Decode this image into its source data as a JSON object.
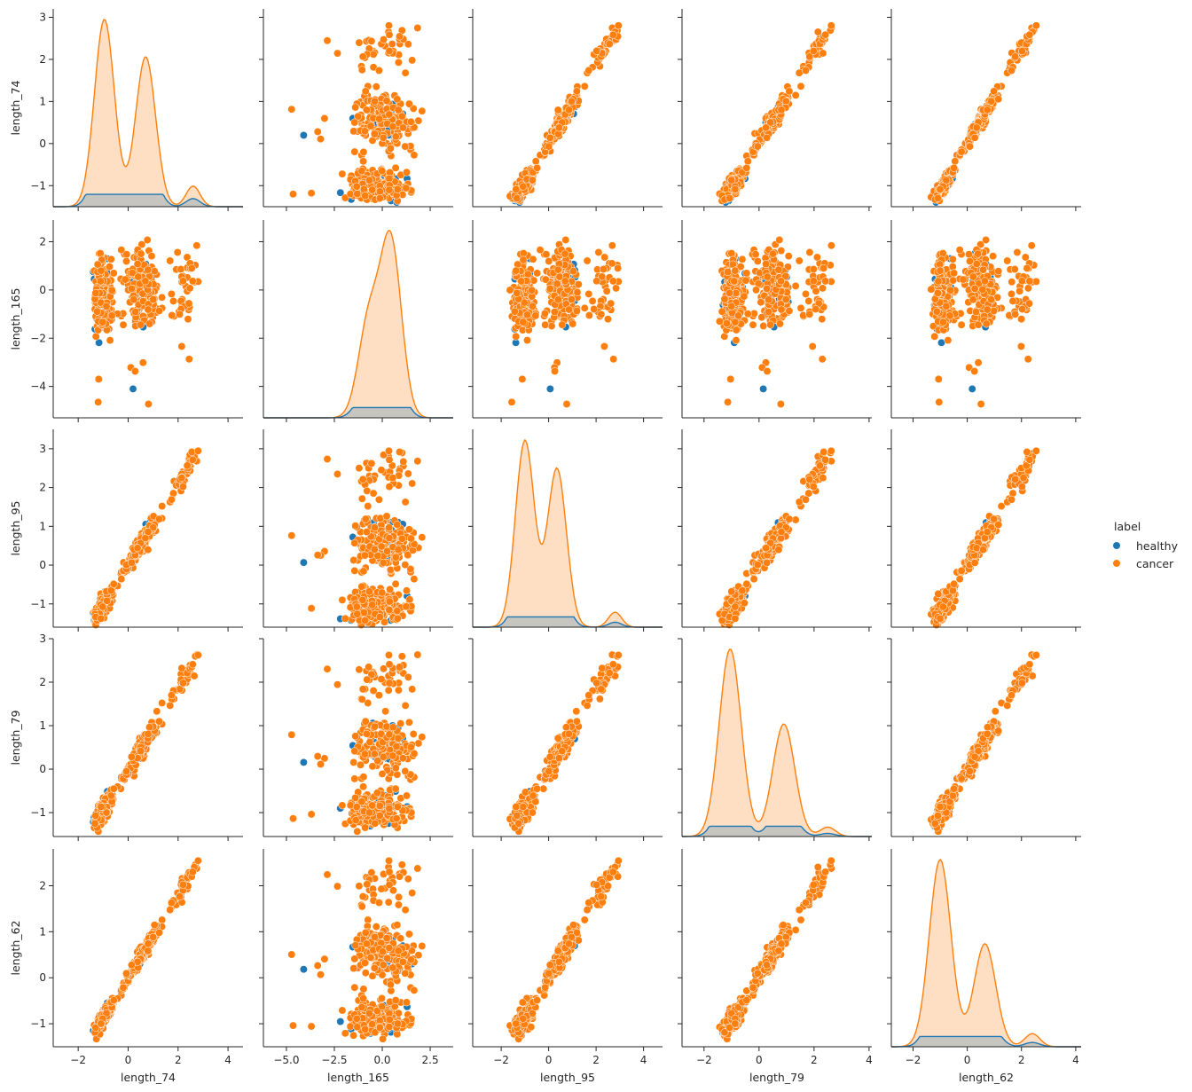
{
  "chart_data": {
    "type": "pairplot",
    "variables": [
      "length_74",
      "length_165",
      "length_95",
      "length_79",
      "length_62"
    ],
    "hue": "label",
    "legend": {
      "title": "label",
      "placement": "right",
      "entries": [
        {
          "name": "healthy",
          "color": "#1f77b4"
        },
        {
          "name": "cancer",
          "color": "#ff7f0e"
        }
      ]
    },
    "diagonal": "kde",
    "offdiagonal": "scatter",
    "axes": {
      "length_74": {
        "lim": [
          -3.0,
          4.6
        ],
        "ticks": [
          -2,
          0,
          2,
          4
        ],
        "row_lim": [
          -1.5,
          3.2
        ],
        "row_ticks": [
          -1,
          0,
          1,
          2,
          3
        ]
      },
      "length_165": {
        "lim": [
          -6.2,
          3.7
        ],
        "ticks": [
          -5.0,
          -2.5,
          0.0,
          2.5
        ],
        "tick_labels": [
          "−5.0",
          "−2.5",
          "0.0",
          "2.5"
        ],
        "row_lim": [
          -5.3,
          2.9
        ],
        "row_ticks": [
          -4,
          -2,
          0,
          2
        ]
      },
      "length_95": {
        "lim": [
          -3.2,
          4.8
        ],
        "ticks": [
          -2,
          0,
          2,
          4
        ],
        "row_lim": [
          -1.6,
          3.5
        ],
        "row_ticks": [
          -1,
          0,
          1,
          2,
          3
        ]
      },
      "length_79": {
        "lim": [
          -2.8,
          4.1
        ],
        "ticks": [
          -2,
          0,
          2,
          4
        ],
        "row_lim": [
          -1.55,
          3.0
        ],
        "row_ticks": [
          -1,
          0,
          1,
          2,
          3
        ]
      },
      "length_62": {
        "lim": [
          -2.8,
          4.2
        ],
        "ticks": [
          -2,
          0,
          2,
          4
        ],
        "row_lim": [
          -1.5,
          2.8
        ],
        "row_ticks": [
          -1,
          0,
          1,
          2
        ]
      }
    },
    "kde_peaks": {
      "length_74": {
        "cancer": [
          [
            -0.95,
            1.0
          ],
          [
            0.7,
            0.8
          ],
          [
            2.6,
            0.11
          ]
        ],
        "healthy_level": 0.06
      },
      "length_165": {
        "cancer": [
          [
            -0.7,
            0.55
          ],
          [
            0.45,
            1.0
          ]
        ],
        "healthy_level": 0.05
      },
      "length_95": {
        "cancer": [
          [
            -1.0,
            1.0
          ],
          [
            0.35,
            0.85
          ],
          [
            2.8,
            0.08
          ]
        ],
        "healthy_level": 0.05
      },
      "length_79": {
        "cancer": [
          [
            -1.05,
            1.0
          ],
          [
            0.9,
            0.6
          ],
          [
            2.5,
            0.05
          ]
        ],
        "healthy_level": 0.05
      },
      "length_62": {
        "cancer": [
          [
            -1.0,
            1.0
          ],
          [
            0.65,
            0.55
          ],
          [
            2.4,
            0.07
          ]
        ],
        "healthy_level": 0.05
      }
    }
  }
}
